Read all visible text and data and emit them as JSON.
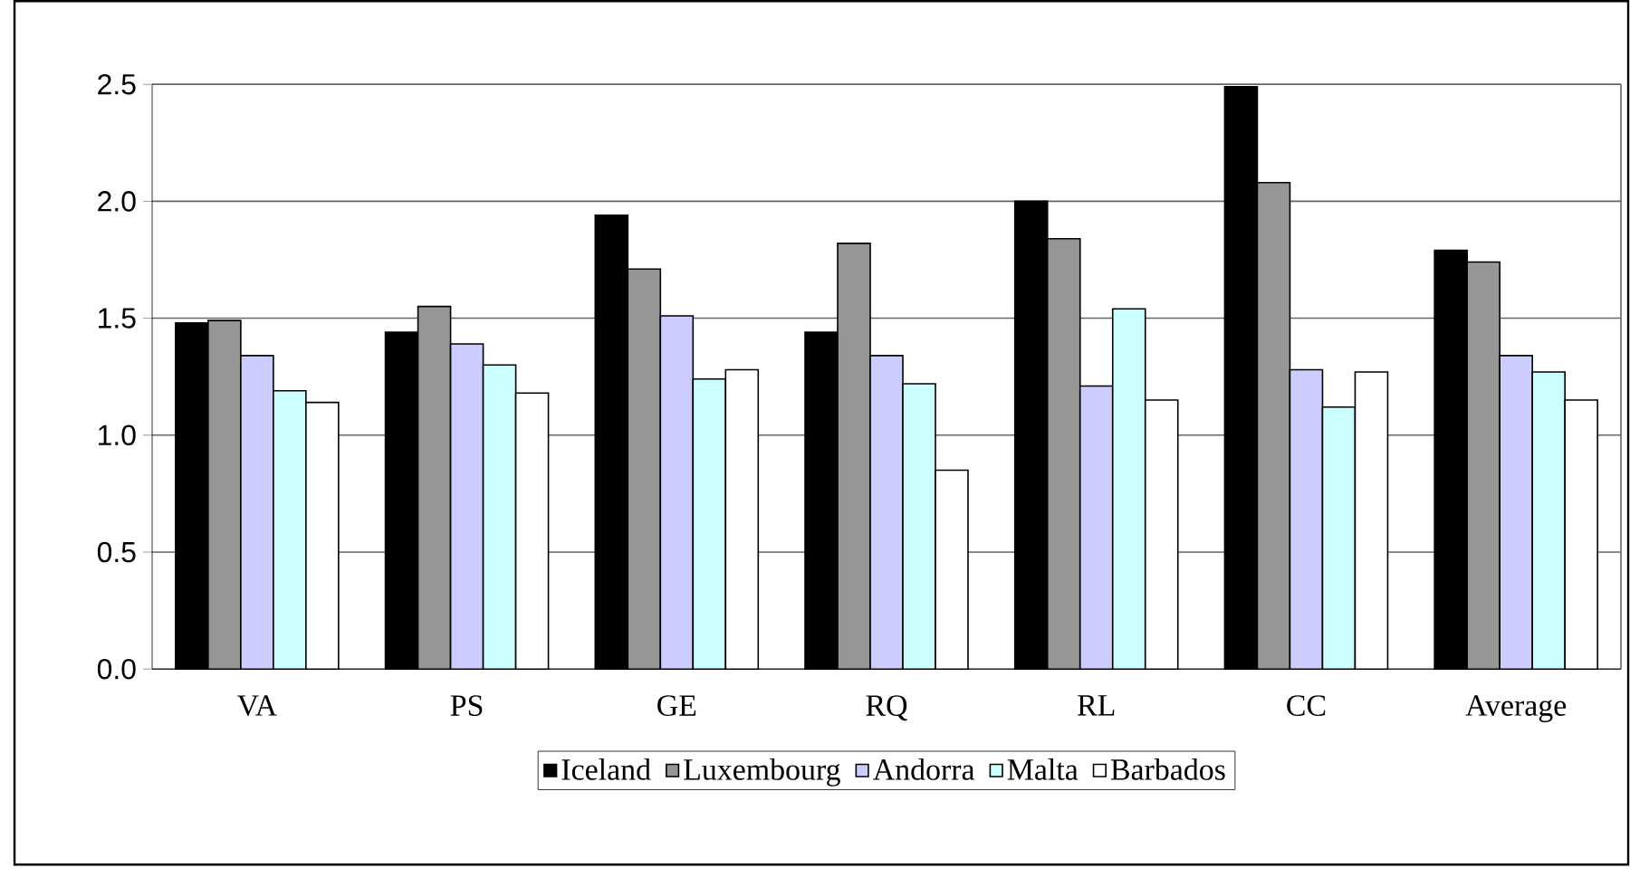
{
  "chart_data": {
    "type": "bar",
    "categories": [
      "VA",
      "PS",
      "GE",
      "RQ",
      "RL",
      "CC",
      "Average"
    ],
    "series": [
      {
        "name": "Iceland",
        "color": "#000000",
        "values": [
          1.48,
          1.44,
          1.94,
          1.44,
          2.0,
          2.49,
          1.79
        ]
      },
      {
        "name": "Luxembourg",
        "color": "#969696",
        "values": [
          1.49,
          1.55,
          1.71,
          1.82,
          1.84,
          2.08,
          1.74
        ]
      },
      {
        "name": "Andorra",
        "color": "#ccccff",
        "values": [
          1.34,
          1.39,
          1.51,
          1.34,
          1.21,
          1.28,
          1.34
        ]
      },
      {
        "name": "Malta",
        "color": "#ccffff",
        "values": [
          1.19,
          1.3,
          1.24,
          1.22,
          1.54,
          1.12,
          1.27
        ]
      },
      {
        "name": "Barbados",
        "color": "#ffffff",
        "values": [
          1.14,
          1.18,
          1.28,
          0.85,
          1.15,
          1.27,
          1.15
        ]
      }
    ],
    "ylim": [
      0,
      2.5
    ],
    "yticks": [
      {
        "value": 0,
        "label": "0.0"
      },
      {
        "value": 0.5,
        "label": "0.5"
      },
      {
        "value": 1,
        "label": "1.0"
      },
      {
        "value": 1.5,
        "label": "1.5"
      },
      {
        "value": 2,
        "label": "2.0"
      },
      {
        "value": 2.5,
        "label": "2.5"
      }
    ],
    "grid": "y",
    "legend": "bottom"
  }
}
